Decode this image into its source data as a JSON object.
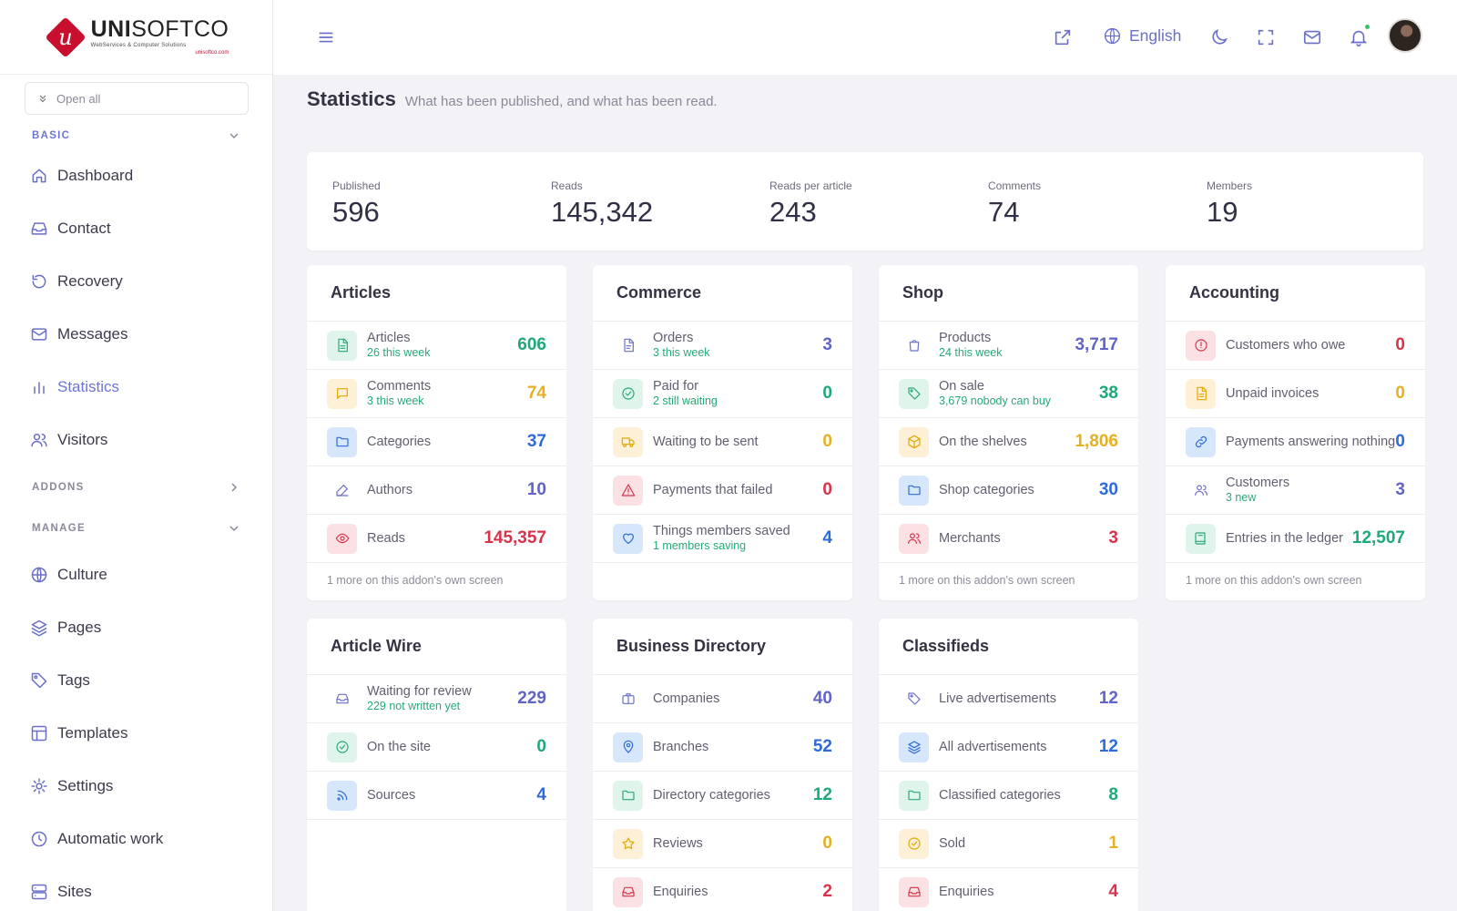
{
  "brand": {
    "name_bold": "UNI",
    "name_light": "SOFTCO",
    "tagline": "WebServices & Computer Solutions",
    "url": "unisoftco.com"
  },
  "sidebar": {
    "open_all": "Open all",
    "sections": [
      {
        "label": "BASIC",
        "color": "#6e74d6"
      },
      {
        "label": "ADDONS",
        "color": "#8a8a9a"
      },
      {
        "label": "MANAGE",
        "color": "#8a8a9a"
      }
    ],
    "items": [
      {
        "label": "Dashboard",
        "icon": "home-icon"
      },
      {
        "label": "Contact",
        "icon": "inbox-icon"
      },
      {
        "label": "Recovery",
        "icon": "rotate-icon"
      },
      {
        "label": "Messages",
        "icon": "mail-icon"
      },
      {
        "label": "Statistics",
        "icon": "bar-chart-icon",
        "active": true
      },
      {
        "label": "Visitors",
        "icon": "users-icon"
      },
      {
        "label": "Culture",
        "icon": "globe-icon"
      },
      {
        "label": "Pages",
        "icon": "layers-icon"
      },
      {
        "label": "Tags",
        "icon": "tag-icon"
      },
      {
        "label": "Templates",
        "icon": "layout-icon"
      },
      {
        "label": "Settings",
        "icon": "gear-icon"
      },
      {
        "label": "Automatic work",
        "icon": "clock-icon"
      },
      {
        "label": "Sites",
        "icon": "server-icon"
      }
    ]
  },
  "topbar": {
    "language": "English"
  },
  "page": {
    "title": "Statistics",
    "subtitle": "What has been published, and what has been read."
  },
  "summary": [
    {
      "label": "Published",
      "value": "596"
    },
    {
      "label": "Reads",
      "value": "145,342"
    },
    {
      "label": "Reads per article",
      "value": "243"
    },
    {
      "label": "Comments",
      "value": "74"
    },
    {
      "label": "Members",
      "value": "19"
    }
  ],
  "cards": [
    {
      "title": "Articles",
      "footer": "1 more on this addon's own screen",
      "rows": [
        {
          "label": "Articles",
          "sub": "26 this week",
          "value": "606",
          "tone": "green",
          "icon": "file-text-icon"
        },
        {
          "label": "Comments",
          "sub": "3 this week",
          "value": "74",
          "tone": "yellow",
          "icon": "message-icon"
        },
        {
          "label": "Categories",
          "sub": "",
          "value": "37",
          "tone": "blue",
          "icon": "folder-icon"
        },
        {
          "label": "Authors",
          "sub": "",
          "value": "10",
          "tone": "purple",
          "icon": "pen-icon"
        },
        {
          "label": "Reads",
          "sub": "",
          "value": "145,357",
          "tone": "red",
          "icon": "eye-icon"
        }
      ]
    },
    {
      "title": "Commerce",
      "footer": "",
      "rows": [
        {
          "label": "Orders",
          "sub": "3 this week",
          "value": "3",
          "tone": "purple",
          "icon": "file-icon"
        },
        {
          "label": "Paid for",
          "sub": "2 still waiting",
          "value": "0",
          "tone": "green",
          "icon": "check-circle-icon"
        },
        {
          "label": "Waiting to be sent",
          "sub": "",
          "value": "0",
          "tone": "yellow",
          "icon": "truck-icon"
        },
        {
          "label": "Payments that failed",
          "sub": "",
          "value": "0",
          "tone": "red",
          "icon": "alert-triangle-icon"
        },
        {
          "label": "Things members saved",
          "sub": "1 members saving",
          "value": "4",
          "tone": "blue",
          "icon": "heart-icon"
        }
      ]
    },
    {
      "title": "Shop",
      "footer": "1 more on this addon's own screen",
      "rows": [
        {
          "label": "Products",
          "sub": "24 this week",
          "value": "3,717",
          "tone": "purple",
          "icon": "bag-icon"
        },
        {
          "label": "On sale",
          "sub": "3,679 nobody can buy",
          "value": "38",
          "tone": "green",
          "icon": "tag-icon"
        },
        {
          "label": "On the shelves",
          "sub": "",
          "value": "1,806",
          "tone": "yellow",
          "icon": "box-icon"
        },
        {
          "label": "Shop categories",
          "sub": "",
          "value": "30",
          "tone": "blue",
          "icon": "folder-icon"
        },
        {
          "label": "Merchants",
          "sub": "",
          "value": "3",
          "tone": "red",
          "icon": "users-icon"
        }
      ]
    },
    {
      "title": "Accounting",
      "footer": "1 more on this addon's own screen",
      "rows": [
        {
          "label": "Customers who owe",
          "sub": "",
          "value": "0",
          "tone": "red",
          "icon": "alert-circle-icon"
        },
        {
          "label": "Unpaid invoices",
          "sub": "",
          "value": "0",
          "tone": "yellow",
          "icon": "file-text-icon"
        },
        {
          "label": "Payments answering nothing",
          "sub": "",
          "value": "0",
          "tone": "blue",
          "icon": "link-icon"
        },
        {
          "label": "Customers",
          "sub": "3 new",
          "value": "3",
          "tone": "purple",
          "icon": "users-icon"
        },
        {
          "label": "Entries in the ledger",
          "sub": "",
          "value": "12,507",
          "tone": "green",
          "icon": "book-icon"
        }
      ]
    },
    {
      "title": "Article Wire",
      "footer": "",
      "rows": [
        {
          "label": "Waiting for review",
          "sub": "229 not written yet",
          "value": "229",
          "tone": "purple",
          "icon": "inbox-icon"
        },
        {
          "label": "On the site",
          "sub": "",
          "value": "0",
          "tone": "green",
          "icon": "check-circle-icon"
        },
        {
          "label": "Sources",
          "sub": "",
          "value": "4",
          "tone": "blue",
          "icon": "rss-icon"
        }
      ]
    },
    {
      "title": "Business Directory",
      "footer": "",
      "rows": [
        {
          "label": "Companies",
          "sub": "",
          "value": "40",
          "tone": "purple",
          "icon": "briefcase-icon"
        },
        {
          "label": "Branches",
          "sub": "",
          "value": "52",
          "tone": "blue",
          "icon": "map-pin-icon"
        },
        {
          "label": "Directory categories",
          "sub": "",
          "value": "12",
          "tone": "green",
          "icon": "folder-icon"
        },
        {
          "label": "Reviews",
          "sub": "",
          "value": "0",
          "tone": "yellow",
          "icon": "star-icon"
        },
        {
          "label": "Enquiries",
          "sub": "",
          "value": "2",
          "tone": "red",
          "icon": "inbox-icon"
        }
      ]
    },
    {
      "title": "Classifieds",
      "footer": "",
      "rows": [
        {
          "label": "Live advertisements",
          "sub": "",
          "value": "12",
          "tone": "purple",
          "icon": "tag-icon"
        },
        {
          "label": "All advertisements",
          "sub": "",
          "value": "12",
          "tone": "blue",
          "icon": "layers-icon"
        },
        {
          "label": "Classified categories",
          "sub": "",
          "value": "8",
          "tone": "green",
          "icon": "folder-icon"
        },
        {
          "label": "Sold",
          "sub": "",
          "value": "1",
          "tone": "yellow",
          "icon": "check-circle-icon"
        },
        {
          "label": "Enquiries",
          "sub": "",
          "value": "4",
          "tone": "red",
          "icon": "inbox-icon"
        }
      ]
    }
  ]
}
